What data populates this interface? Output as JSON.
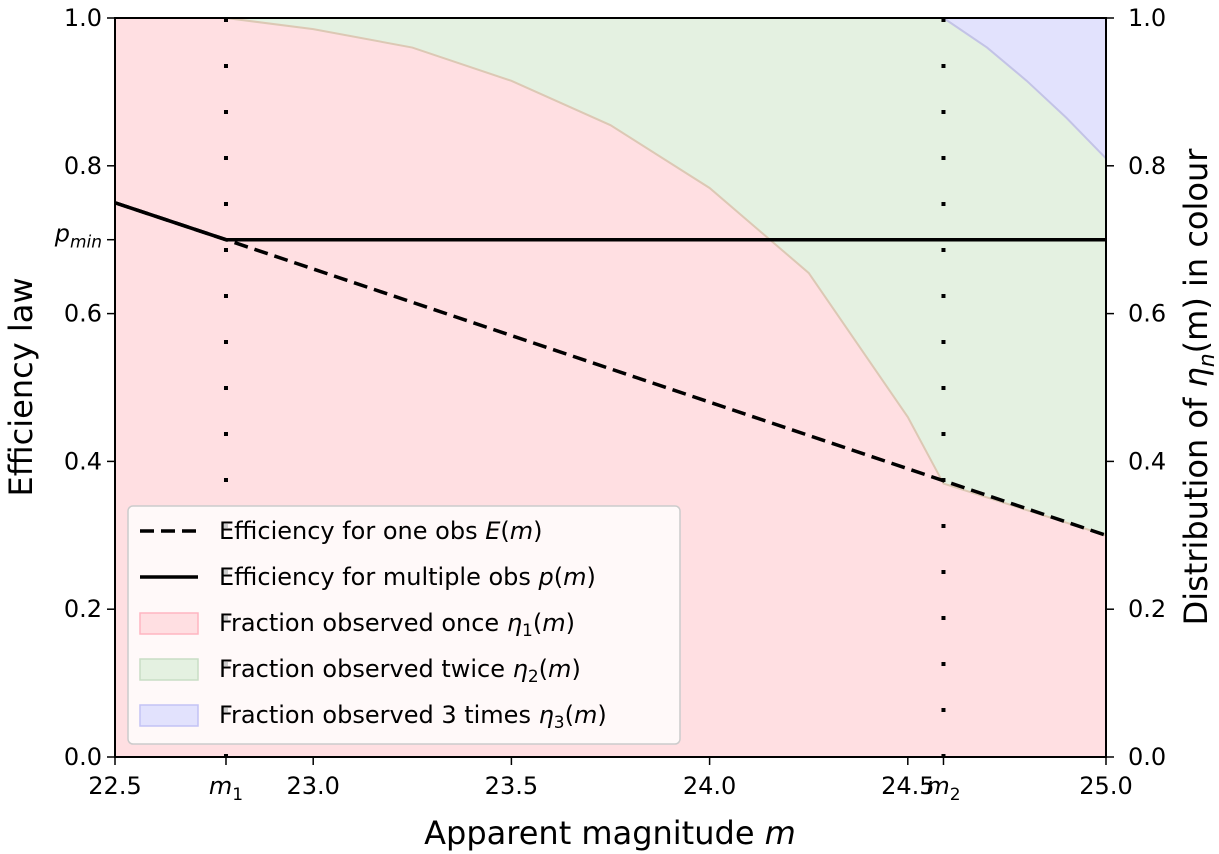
{
  "chart_data": {
    "type": "line",
    "xlabel": "Apparent magnitude",
    "xlabel_var": "m",
    "ylabel_left": "Efficiency law",
    "ylabel_right_prefix": "Distribution of ",
    "ylabel_right_var": "η",
    "ylabel_right_sub": "n",
    "ylabel_right_suffix": "(m) in colour",
    "xlim": [
      22.5,
      25.0
    ],
    "ylim": [
      0.0,
      1.0
    ],
    "x_ticks": [
      {
        "value": 22.5,
        "label": "22.5"
      },
      {
        "value": 23.0,
        "label": "23.0"
      },
      {
        "value": 23.5,
        "label": "23.5"
      },
      {
        "value": 24.0,
        "label": "24.0"
      },
      {
        "value": 24.5,
        "label": "24.5"
      },
      {
        "value": 25.0,
        "label": "25.0"
      }
    ],
    "y_ticks": [
      {
        "value": 0.0,
        "label": "0.0"
      },
      {
        "value": 0.2,
        "label": "0.2"
      },
      {
        "value": 0.4,
        "label": "0.4"
      },
      {
        "value": 0.6,
        "label": "0.6"
      },
      {
        "value": 0.8,
        "label": "0.8"
      },
      {
        "value": 1.0,
        "label": "1.0"
      }
    ],
    "special_x_ticks": [
      {
        "value": 22.78,
        "label_main": "m",
        "label_sub": "1"
      },
      {
        "value": 24.59,
        "label_main": "m",
        "label_sub": "2"
      }
    ],
    "special_y_ticks": [
      {
        "value": 0.7,
        "label_main": "p",
        "label_sub": "min"
      }
    ],
    "vlines": [
      22.78,
      24.59
    ],
    "series": [
      {
        "name": "Efficiency for one obs ",
        "var": "E",
        "suffix": "(m)",
        "style": "dashed",
        "color": "#000000",
        "x": [
          22.5,
          22.78,
          25.0
        ],
        "y": [
          0.75,
          0.7,
          0.3
        ]
      },
      {
        "name": "Efficiency for multiple obs ",
        "var": "p",
        "suffix": "(m)",
        "style": "solid",
        "color": "#000000",
        "x": [
          22.5,
          22.78,
          25.0
        ],
        "y": [
          0.75,
          0.7,
          0.7
        ]
      }
    ],
    "regions": [
      {
        "name": "Fraction observed once ",
        "var": "η",
        "sub": "1",
        "suffix": "(m)",
        "color": "#ffdfe2",
        "edge": "#ffb6c1"
      },
      {
        "name": "Fraction observed twice ",
        "var": "η",
        "sub": "2",
        "suffix": "(m)",
        "color": "#e4f1e1",
        "edge": "#c8dec5"
      },
      {
        "name": "Fraction observed 3 times ",
        "var": "η",
        "sub": "3",
        "suffix": "(m)",
        "color": "#e2e2fd",
        "edge": "#c3c3f5"
      }
    ],
    "boundary_once_twice": {
      "x": [
        22.78,
        23.0,
        23.25,
        23.5,
        23.75,
        24.0,
        24.25,
        24.5,
        24.59,
        25.0
      ],
      "y": [
        1.0,
        0.985,
        0.96,
        0.915,
        0.855,
        0.77,
        0.655,
        0.46,
        0.37,
        0.3
      ]
    },
    "boundary_twice_three": {
      "x": [
        24.59,
        24.7,
        24.8,
        24.9,
        25.0
      ],
      "y": [
        1.0,
        0.96,
        0.915,
        0.865,
        0.81
      ]
    },
    "legend_position": "lower-left"
  }
}
